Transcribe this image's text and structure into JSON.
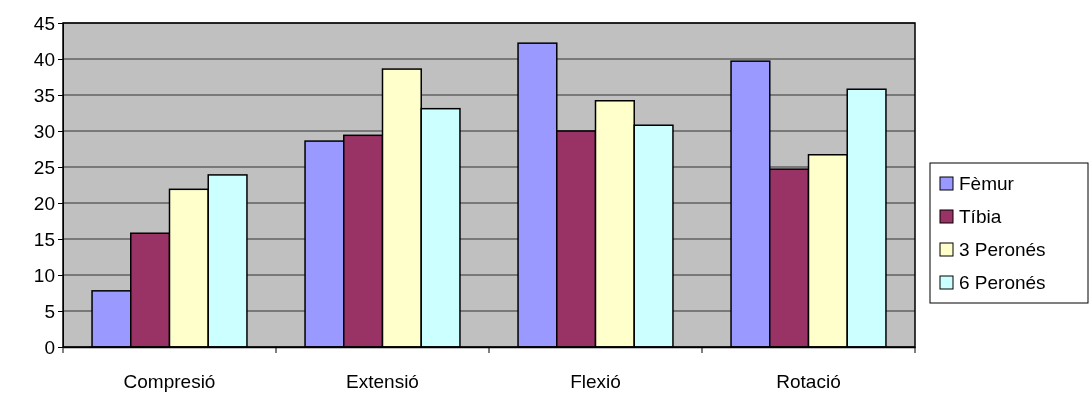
{
  "chart_data": {
    "type": "bar",
    "categories": [
      "Compresió",
      "Extensió",
      "Flexió",
      "Rotació"
    ],
    "series": [
      {
        "name": "Fèmur",
        "color": "#9999ff",
        "values": [
          7.8,
          28.6,
          42.2,
          39.7
        ]
      },
      {
        "name": "Tíbia",
        "color": "#993366",
        "values": [
          15.8,
          29.4,
          30.0,
          24.7
        ]
      },
      {
        "name": "3 Peronés",
        "color": "#ffffcc",
        "values": [
          21.9,
          38.6,
          34.2,
          26.7
        ]
      },
      {
        "name": "6 Peronés",
        "color": "#ccffff",
        "values": [
          23.9,
          33.1,
          30.8,
          35.8
        ]
      }
    ],
    "ylim": [
      0,
      45
    ],
    "yticks": [
      0,
      5,
      10,
      15,
      20,
      25,
      30,
      35,
      40,
      45
    ],
    "grid": "y",
    "legend": "right"
  }
}
